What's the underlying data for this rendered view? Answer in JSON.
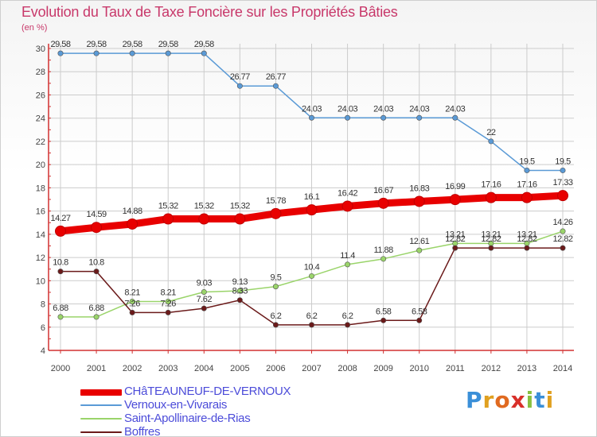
{
  "header": {
    "title": "Evolution du Taux de Taxe Foncière sur les Propriétés Bâties",
    "unit": "(en %)"
  },
  "logo": {
    "letters": [
      "P",
      "r",
      "o",
      "x",
      "i",
      "t",
      "i"
    ]
  },
  "chart_data": {
    "type": "line",
    "title": "Evolution du Taux de Taxe Foncière sur les Propriétés Bâties",
    "ylabel": "(en %)",
    "xlabel": "",
    "ylim": [
      4,
      30
    ],
    "yticks": [
      4,
      6,
      8,
      10,
      12,
      14,
      16,
      18,
      20,
      22,
      24,
      26,
      28,
      30
    ],
    "categories": [
      "2000",
      "2001",
      "2002",
      "2003",
      "2004",
      "2005",
      "2006",
      "2007",
      "2008",
      "2009",
      "2010",
      "2011",
      "2012",
      "2013",
      "2014"
    ],
    "legend_position": "bottom-left",
    "series": [
      {
        "name": "CHâTEAUNEUF-DE-VERNOUX",
        "color": "#e80000",
        "emphasis": true,
        "values": [
          14.27,
          14.59,
          14.88,
          15.32,
          15.32,
          15.32,
          15.78,
          16.1,
          16.42,
          16.67,
          16.83,
          16.99,
          17.16,
          17.16,
          17.33
        ],
        "labels": [
          "14.27",
          "14.59",
          "14.88",
          "15.32",
          "15.32",
          "15.32",
          "15.78",
          "16.1",
          "16.42",
          "16.67",
          "16.83",
          "16.99",
          "17.16",
          "17.16",
          "17.33"
        ]
      },
      {
        "name": "Vernoux-en-Vivarais",
        "color": "#5a9ad6",
        "emphasis": false,
        "values": [
          29.58,
          29.58,
          29.58,
          29.58,
          29.58,
          26.77,
          26.77,
          24.03,
          24.03,
          24.03,
          24.03,
          24.03,
          22,
          19.5,
          19.5
        ],
        "labels": [
          "29.58",
          "29.58",
          "29.58",
          "29.58",
          "29.58",
          "26.77",
          "26.77",
          "24.03",
          "24.03",
          "24.03",
          "24.03",
          "24.03",
          "22",
          "19.5",
          "19.5"
        ]
      },
      {
        "name": "Saint-Apollinaire-de-Rias",
        "color": "#9ad46a",
        "emphasis": false,
        "values": [
          6.88,
          6.88,
          8.21,
          8.21,
          9.03,
          9.13,
          9.5,
          10.4,
          11.4,
          11.88,
          12.61,
          13.21,
          13.21,
          13.21,
          14.26
        ],
        "labels": [
          "6.88",
          "6.88",
          "8.21",
          "8.21",
          "9.03",
          "9.13",
          "9.5",
          "10.4",
          "11.4",
          "11.88",
          "12.61",
          "13.21",
          "13.21",
          "13.21",
          "14.26"
        ]
      },
      {
        "name": "Boffres",
        "color": "#6b1a1a",
        "emphasis": false,
        "values": [
          10.8,
          10.8,
          7.26,
          7.26,
          7.62,
          8.33,
          6.2,
          6.2,
          6.2,
          6.58,
          6.58,
          12.82,
          12.82,
          12.82,
          12.82
        ],
        "labels": [
          "10.8",
          "10.8",
          "7.26",
          "7.26",
          "7.62",
          "8.33",
          "6.2",
          "6.2",
          "6.2",
          "6.58",
          "6.58",
          "12.82",
          "12.82",
          "12.82",
          "12.82"
        ]
      }
    ]
  }
}
